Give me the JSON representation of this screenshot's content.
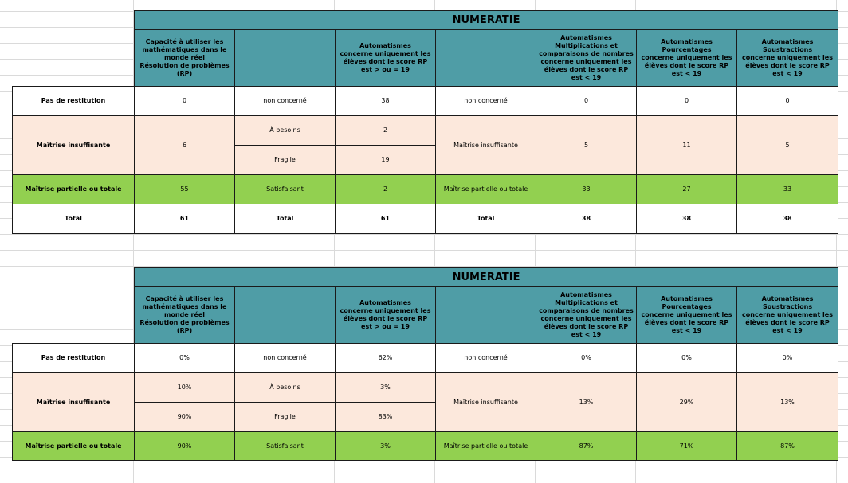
{
  "tables": [
    {
      "title": "NUMERATIE",
      "headers": [
        "Capacité à utiliser les\nmathématiques dans le\nmonde réel\nRésolution de problèmes\n(RP)",
        "",
        "Automatismes\nconcerne uniquement les\nélèves dont le score RP\nest > ou = 19",
        "",
        "Automatismes\nMultiplications et\ncomparaisons de nombres\nconcerne uniquement les\nélèves dont le score RP\nest <  19",
        "Automatismes\nPourcentages\nconcerne uniquement les\nélèves dont le score RP\nest <  19",
        "Automatismes\nSoustractions\nconcerne uniquement les\nélèves dont le score RP\nest <  19"
      ],
      "row_pas": {
        "label": "Pas de restitution",
        "c1": "0",
        "c2": "non concerné",
        "c3": "38",
        "c4": "non concerné",
        "c5": "0",
        "c6": "0",
        "c7": "0"
      },
      "row_mi": {
        "label": "Maîtrise insuffisante",
        "c1": "6",
        "c2a": "À besoins",
        "c3a": "2",
        "c2b": "Fragile",
        "c3b": "19",
        "c4": "Maîtrise insuffisante",
        "c5": "5",
        "c6": "11",
        "c7": "5"
      },
      "row_mp": {
        "label": "Maîtrise partielle ou totale",
        "c1": "55",
        "c2": "Satisfaisant",
        "c3": "2",
        "c4": "Maîtrise partielle ou totale",
        "c5": "33",
        "c6": "27",
        "c7": "33"
      },
      "row_total": {
        "label": "Total",
        "c1": "61",
        "c2": "Total",
        "c3": "61",
        "c4": "Total",
        "c5": "38",
        "c6": "38",
        "c7": "38"
      }
    },
    {
      "title": "NUMERATIE",
      "headers": [
        "Capacité à utiliser les\nmathématiques dans le\nmonde réel\nRésolution de problèmes\n(RP)",
        "",
        "Automatismes\nconcerne uniquement les\nélèves dont le score RP\nest > ou = 19",
        "",
        "Automatismes\nMultiplications et\ncomparaisons de nombres\nconcerne uniquement les\nélèves dont le score RP\nest <  19",
        "Automatismes\nPourcentages\nconcerne uniquement les\nélèves dont le score RP\nest <  19",
        "Automatismes\nSoustractions\nconcerne uniquement les\nélèves dont le score RP\nest <  19"
      ],
      "row_pas": {
        "label": "Pas de restitution",
        "c1": "0%",
        "c2": "non concerné",
        "c3": "62%",
        "c4": "non concerné",
        "c5": "0%",
        "c6": "0%",
        "c7": "0%"
      },
      "row_mi": {
        "label": "Maîtrise insuffisante",
        "c1a": "10%",
        "c1b": "90%",
        "c2a": "À besoins",
        "c3a": "3%",
        "c2b": "Fragile",
        "c3b": "83%",
        "c4": "Maîtrise insuffisante",
        "c5": "13%",
        "c6": "29%",
        "c7": "13%"
      },
      "row_mp": {
        "label": "Maîtrise partielle ou totale",
        "c1": "90%",
        "c2": "Satisfaisant",
        "c3": "3%",
        "c4": "Maîtrise partielle ou totale",
        "c5": "87%",
        "c6": "71%",
        "c7": "87%"
      }
    }
  ]
}
